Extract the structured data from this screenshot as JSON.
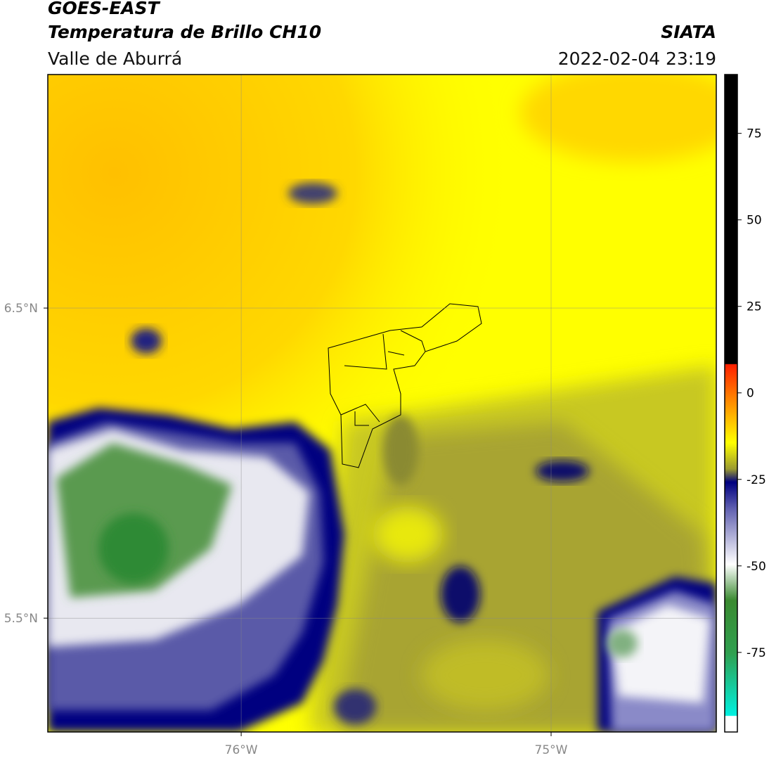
{
  "header": {
    "title": "GOES-EAST",
    "subtitle": "Temperatura de Brillo CH10",
    "region": "Valle de Aburrá",
    "source": "SIATA",
    "datetime": "2022-02-04 23:19"
  },
  "map": {
    "xlim": [
      -76.624,
      -74.467
    ],
    "ylim": [
      5.133,
      7.253
    ],
    "xticks": [
      {
        "value": -76,
        "label": "76°W"
      },
      {
        "value": -75,
        "label": "75°W"
      }
    ],
    "yticks": [
      {
        "value": 5.5,
        "label": "5.5°N"
      },
      {
        "value": 6.5,
        "label": "6.5°N"
      }
    ],
    "grid": true
  },
  "colorbar": {
    "lim": [
      -98,
      92
    ],
    "ticks": [
      -75,
      -50,
      -25,
      0,
      25,
      50,
      75
    ]
  }
}
